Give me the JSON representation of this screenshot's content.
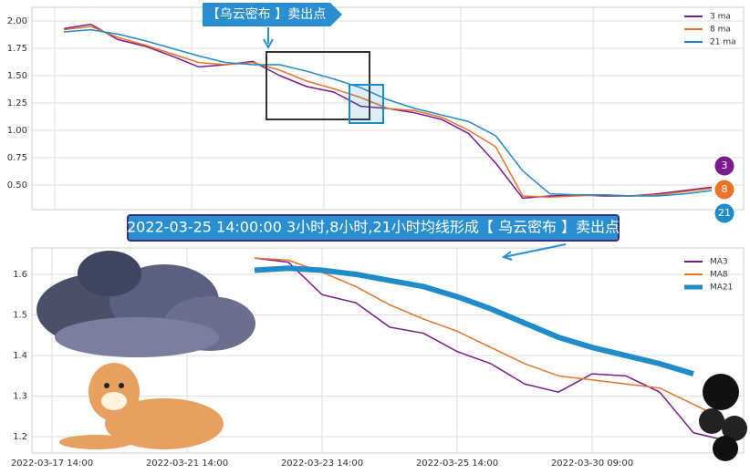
{
  "chart_data": [
    {
      "type": "line",
      "categories": [
        null,
        null,
        null,
        null,
        null,
        null,
        null,
        null,
        null,
        null,
        null,
        null,
        null,
        null,
        null,
        null,
        null,
        null,
        null,
        null,
        null,
        null,
        null,
        null,
        null
      ],
      "series": [
        {
          "name": "3 ma",
          "color": "#7b1a8c",
          "values": [
            1.93,
            1.97,
            1.83,
            1.77,
            1.68,
            1.58,
            1.6,
            1.63,
            1.5,
            1.4,
            1.35,
            1.22,
            1.2,
            1.16,
            1.1,
            0.97,
            0.7,
            0.38,
            0.4,
            0.41,
            0.4,
            0.4,
            0.42,
            0.45,
            0.48
          ]
        },
        {
          "name": "8 ma",
          "color": "#e8742a",
          "values": [
            1.92,
            1.95,
            1.85,
            1.78,
            1.7,
            1.62,
            1.6,
            1.62,
            1.55,
            1.45,
            1.38,
            1.3,
            1.2,
            1.18,
            1.12,
            1.0,
            0.85,
            0.4,
            0.39,
            0.4,
            0.41,
            0.4,
            0.41,
            0.44,
            0.47
          ]
        },
        {
          "name": "21 ma",
          "color": "#1f8bc8",
          "values": [
            1.9,
            1.92,
            1.88,
            1.82,
            1.75,
            1.68,
            1.62,
            1.6,
            1.6,
            1.54,
            1.47,
            1.39,
            1.28,
            1.2,
            1.14,
            1.08,
            0.95,
            0.63,
            0.42,
            0.41,
            0.41,
            0.4,
            0.4,
            0.42,
            0.45
          ]
        }
      ],
      "ylim": [
        0.275,
        2.125
      ],
      "yticks": [
        {
          "value": 0.5,
          "label": "0.50"
        },
        {
          "value": 0.75,
          "label": "0.75"
        },
        {
          "value": 1,
          "label": "1.00"
        },
        {
          "value": 1.25,
          "label": "1.25"
        },
        {
          "value": 1.5,
          "label": "1.50"
        },
        {
          "value": 1.75,
          "label": "1.75"
        },
        {
          "value": 2,
          "label": "2.00"
        }
      ],
      "grid": true,
      "legend": "upper right",
      "annotations": [
        "【乌云密布 】卖出点",
        "3",
        "8",
        "21"
      ]
    },
    {
      "type": "line",
      "categories": [
        "2022-03-17 14:00",
        null,
        null,
        null,
        "2022-03-21 14:00",
        null,
        null,
        null,
        "2022-03-23 14:00",
        null,
        null,
        null,
        "2022-03-25 14:00",
        null,
        null,
        null,
        "2022-03-30 09:00",
        null,
        null,
        null,
        null
      ],
      "series": [
        {
          "name": "MA3",
          "color": "#7b1a8c",
          "values": [
            null,
            null,
            null,
            null,
            null,
            null,
            1.64,
            1.63,
            1.55,
            1.53,
            1.47,
            1.455,
            1.41,
            1.38,
            1.33,
            1.31,
            1.355,
            1.35,
            1.31,
            1.21,
            1.19
          ]
        },
        {
          "name": "MA8",
          "color": "#e8742a",
          "values": [
            null,
            null,
            null,
            null,
            null,
            null,
            1.64,
            1.635,
            1.605,
            1.57,
            1.525,
            1.49,
            1.46,
            1.42,
            1.38,
            1.35,
            1.34,
            1.33,
            1.32,
            1.28,
            1.24
          ]
        },
        {
          "name": "MA21",
          "color": "#1f8bc8",
          "line_width": 6,
          "values": [
            null,
            null,
            null,
            null,
            null,
            null,
            1.61,
            1.615,
            1.61,
            1.6,
            1.585,
            1.57,
            1.545,
            1.515,
            1.48,
            1.445,
            1.42,
            1.4,
            1.38,
            1.355,
            null
          ]
        }
      ],
      "ylim": [
        1.16,
        1.665
      ],
      "yticks": [
        1.2,
        1.3,
        1.4,
        1.5,
        1.6
      ],
      "grid": true,
      "legend": "upper right",
      "annotation": "2022-03-25 14:00:00 3小时,8小时,21小时均线形成【 乌云密布 】卖出点"
    }
  ]
}
